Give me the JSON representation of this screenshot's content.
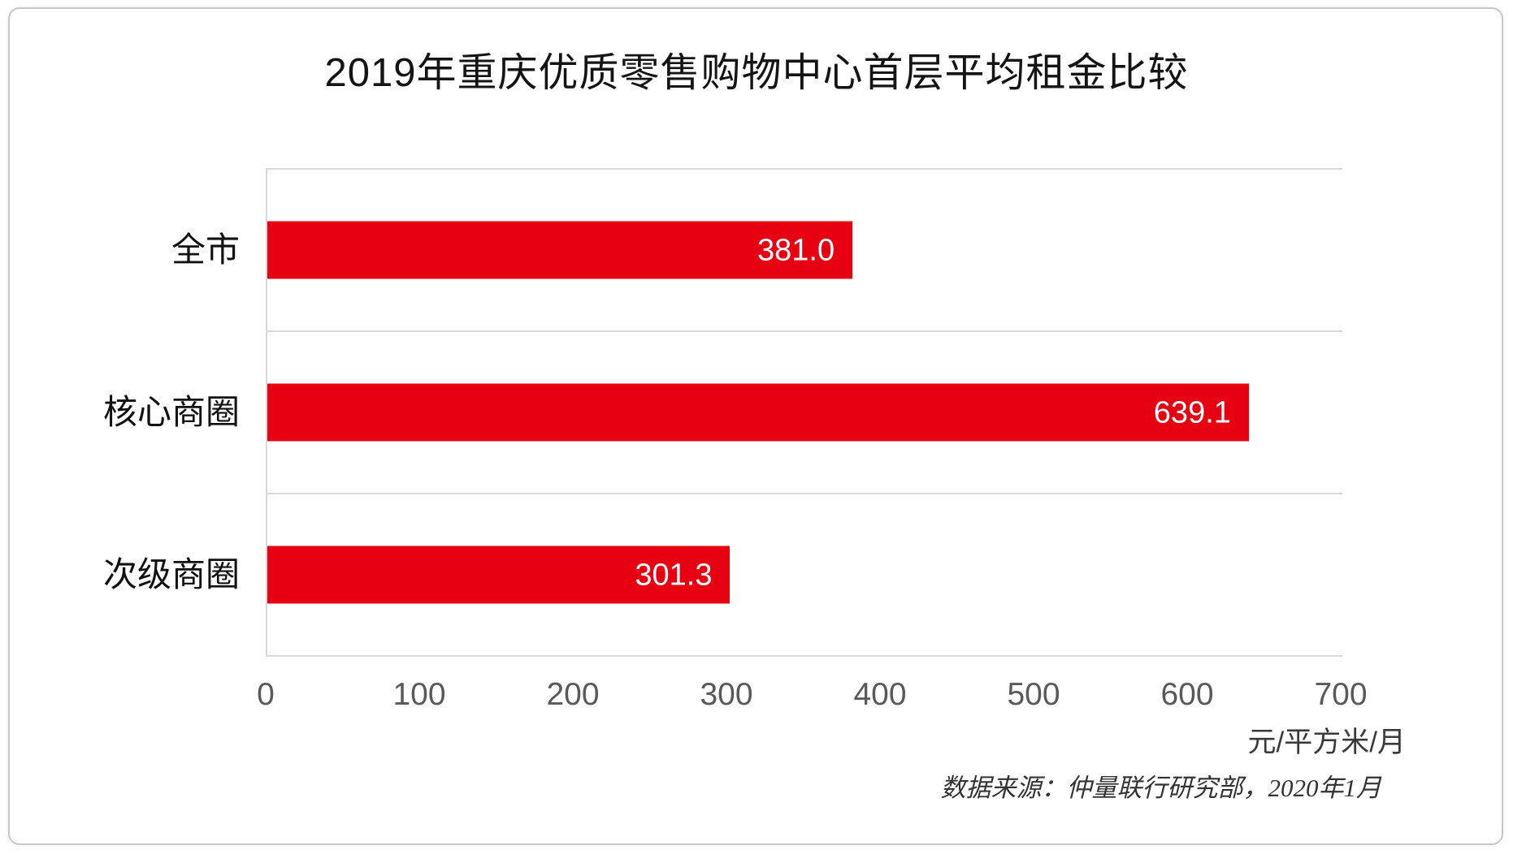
{
  "page": {
    "background": "#ffffff",
    "card_border_color": "#c7c7c7"
  },
  "chart_data": {
    "type": "bar",
    "orientation": "horizontal",
    "title": "2019年重庆优质零售购物中心首层平均租金比较",
    "categories": [
      "全市",
      "核心商圈",
      "次级商圈"
    ],
    "values": [
      381.0,
      639.1,
      301.3
    ],
    "value_labels": [
      "381.0",
      "639.1",
      "301.3"
    ],
    "xlim": [
      0,
      700
    ],
    "xticks": [
      "0",
      "100",
      "200",
      "300",
      "400",
      "500",
      "600",
      "700"
    ],
    "xlabel": "元/平方米/月",
    "source_note": "数据来源：仲量联行研究部，2020年1月",
    "legend_position": "none",
    "grid": "horizontal category separator lines, light gray",
    "bar_color": "#e60012",
    "value_label_color": "#ffffff",
    "gridline_color": "#d9d9d9",
    "tick_label_color": "#595959"
  }
}
